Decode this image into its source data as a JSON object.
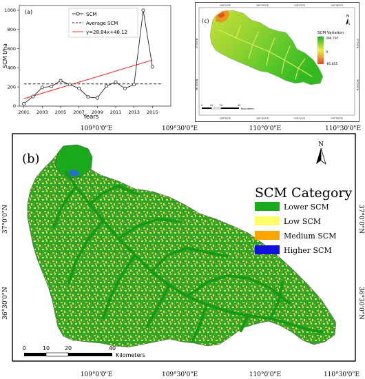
{
  "chart_data": {
    "type": "line",
    "panel_label": "(a)",
    "xlabel": "Years",
    "ylabel": "SCM t/ha",
    "xlim": [
      2000.5,
      2017
    ],
    "ylim": [
      0,
      1050
    ],
    "x_ticks": [
      "2001",
      "2003",
      "2005",
      "2007",
      "2009",
      "2011",
      "2013",
      "2015"
    ],
    "y_ticks": [
      "0",
      "200",
      "400",
      "600",
      "800",
      "1000"
    ],
    "legend_position": "top-center",
    "series": [
      {
        "name": "SCM",
        "x": [
          2001,
          2002,
          2003,
          2004,
          2005,
          2006,
          2007,
          2008,
          2009,
          2010,
          2011,
          2012,
          2013,
          2014,
          2015
        ],
        "y": [
          25,
          100,
          195,
          205,
          265,
          225,
          185,
          95,
          85,
          210,
          250,
          185,
          225,
          1000,
          410
        ],
        "color": "#222222"
      },
      {
        "name": "Average SCM",
        "x": [
          2001,
          2016
        ],
        "y": [
          232,
          232
        ],
        "color": "#222222",
        "style": "dashed"
      },
      {
        "name": "y=28.84x+48.12",
        "x": [
          2001,
          2015
        ],
        "y": [
          76.96,
          480.72
        ],
        "color": "#e8322b"
      }
    ]
  },
  "panel_c": {
    "label": "(c)",
    "north": "N",
    "legend_title": "SCM Variation",
    "legend_max": "396.797",
    "legend_mid": "0",
    "legend_min": "-81.655",
    "scale_ticks": [
      "0",
      "10",
      "20",
      "40"
    ],
    "scale_unit": "Kilometers",
    "lon_labels": [
      "109°0'0\"E",
      "109°30'0\"E",
      "110°0'0\"E",
      "110°30'0\"E"
    ],
    "lat_labels": [
      "37°0'0\"N",
      "36°30'0\"N"
    ],
    "colors": {
      "high": "#1db31d",
      "mid": "#f2ee3c",
      "low": "#e6461e"
    }
  },
  "panel_b": {
    "label": "(b)",
    "north": "N",
    "lon_labels": [
      "109°0'0\"E",
      "109°30'0\"E",
      "110°0'0\"E",
      "110°30'0\"E"
    ],
    "lat_labels": [
      "37°0'0\"N",
      "36°30'0\"N"
    ],
    "legend_title": "SCM Category",
    "legend": [
      {
        "label": "Lower SCM",
        "color": "#1aa91a"
      },
      {
        "label": "Low SCM",
        "color": "#ffff66"
      },
      {
        "label": "Medium SCM",
        "color": "#ffa500"
      },
      {
        "label": "Higher SCM",
        "color": "#1111dd"
      }
    ],
    "scale_ticks": [
      "0",
      "10",
      "20",
      "40"
    ],
    "scale_unit": "Kilometers"
  }
}
